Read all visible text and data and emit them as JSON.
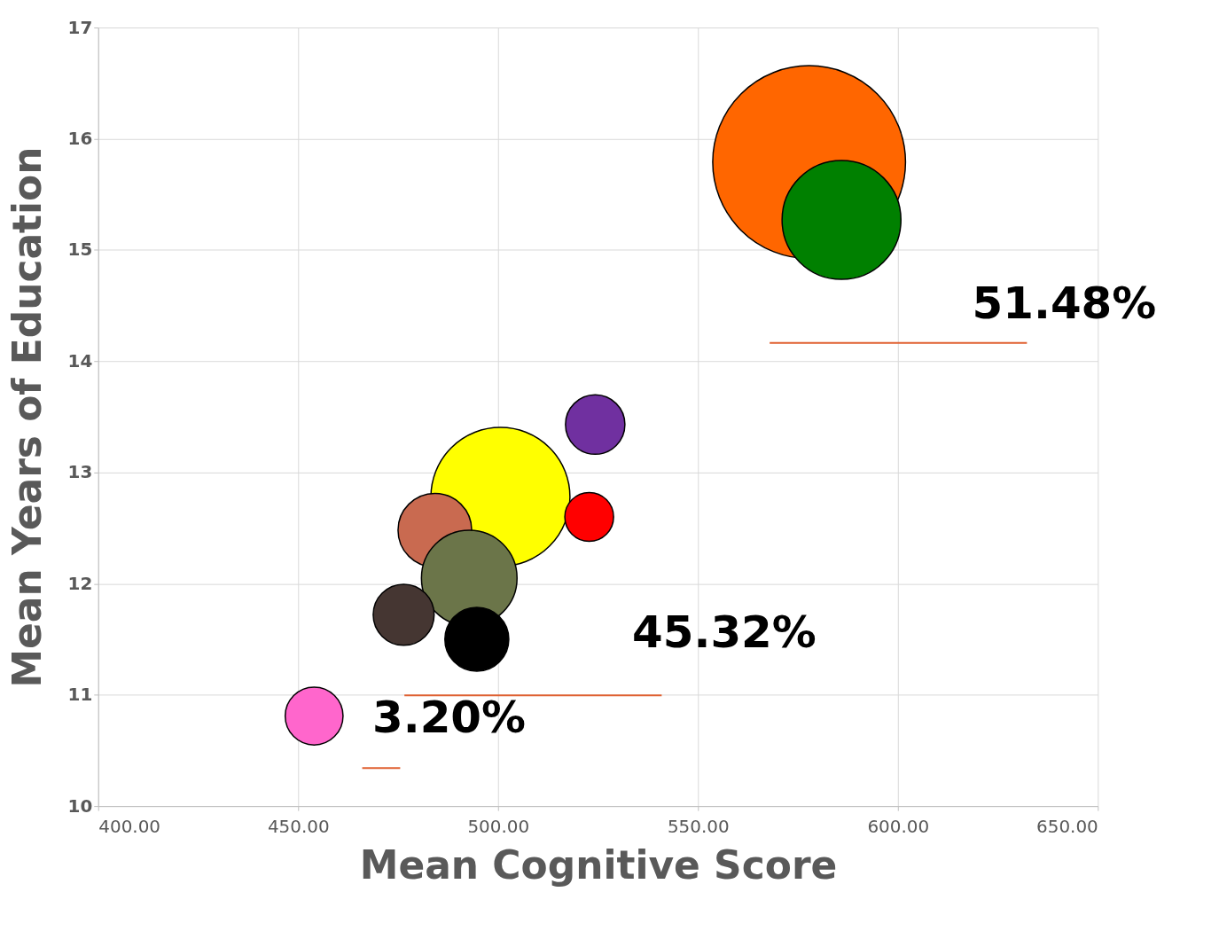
{
  "chart_data": {
    "type": "bubble",
    "xlabel": "Mean Cognitive Score",
    "ylabel": "Mean Years of Education",
    "x": [
      577.8,
      585.9,
      500.6,
      524.3,
      522.8,
      484.2,
      492.8,
      476.4,
      494.7,
      454.0
    ],
    "values": [
      15.79,
      15.27,
      12.78,
      13.43,
      12.6,
      12.48,
      12.05,
      11.72,
      11.5,
      10.81
    ],
    "sizes": [
      1,
      0.38,
      0.52,
      0.095,
      0.064,
      0.146,
      0.246,
      0.1,
      0.11,
      0.09
    ],
    "colors": [
      "#ff6600",
      "#008000",
      "#ffff00",
      "#7030a0",
      "#ff0000",
      "#c96a50",
      "#6b7549",
      "#453632",
      "#000000",
      "#ff66cc"
    ],
    "xlim": [
      400,
      650
    ],
    "xticks": [
      {
        "value": 400,
        "label": "400.00"
      },
      {
        "value": 450,
        "label": "450.00"
      },
      {
        "value": 500,
        "label": "500.00"
      },
      {
        "value": 550,
        "label": "550.00"
      },
      {
        "value": 600,
        "label": "600.00"
      },
      {
        "value": 650,
        "label": "650.00"
      }
    ],
    "ylim": [
      10,
      17
    ],
    "yticks": [
      10,
      11,
      12,
      13,
      14,
      15,
      16,
      17
    ],
    "grid": true,
    "annotations": [
      "51.48%",
      "45.32%",
      "3.20%"
    ]
  }
}
